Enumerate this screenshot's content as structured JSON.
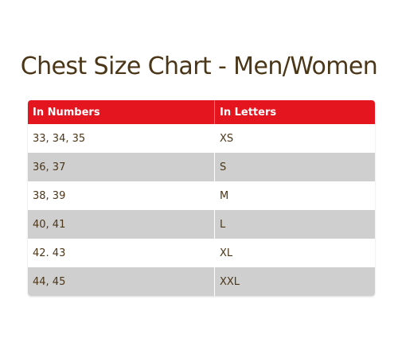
{
  "title": "Chest Size Chart - Men/Women",
  "table": {
    "headers": [
      "In Numbers",
      "In Letters"
    ],
    "rows": [
      {
        "numbers": "33, 34, 35",
        "letters": "XS"
      },
      {
        "numbers": "36, 37",
        "letters": "S"
      },
      {
        "numbers": "38, 39",
        "letters": "M"
      },
      {
        "numbers": "40, 41",
        "letters": "L"
      },
      {
        "numbers": "42. 43",
        "letters": "XL"
      },
      {
        "numbers": "44, 45",
        "letters": "XXL"
      }
    ]
  },
  "colors": {
    "header_bg": "#e4151f",
    "title_text": "#4b3618",
    "stripe": "#cfcfcf"
  }
}
